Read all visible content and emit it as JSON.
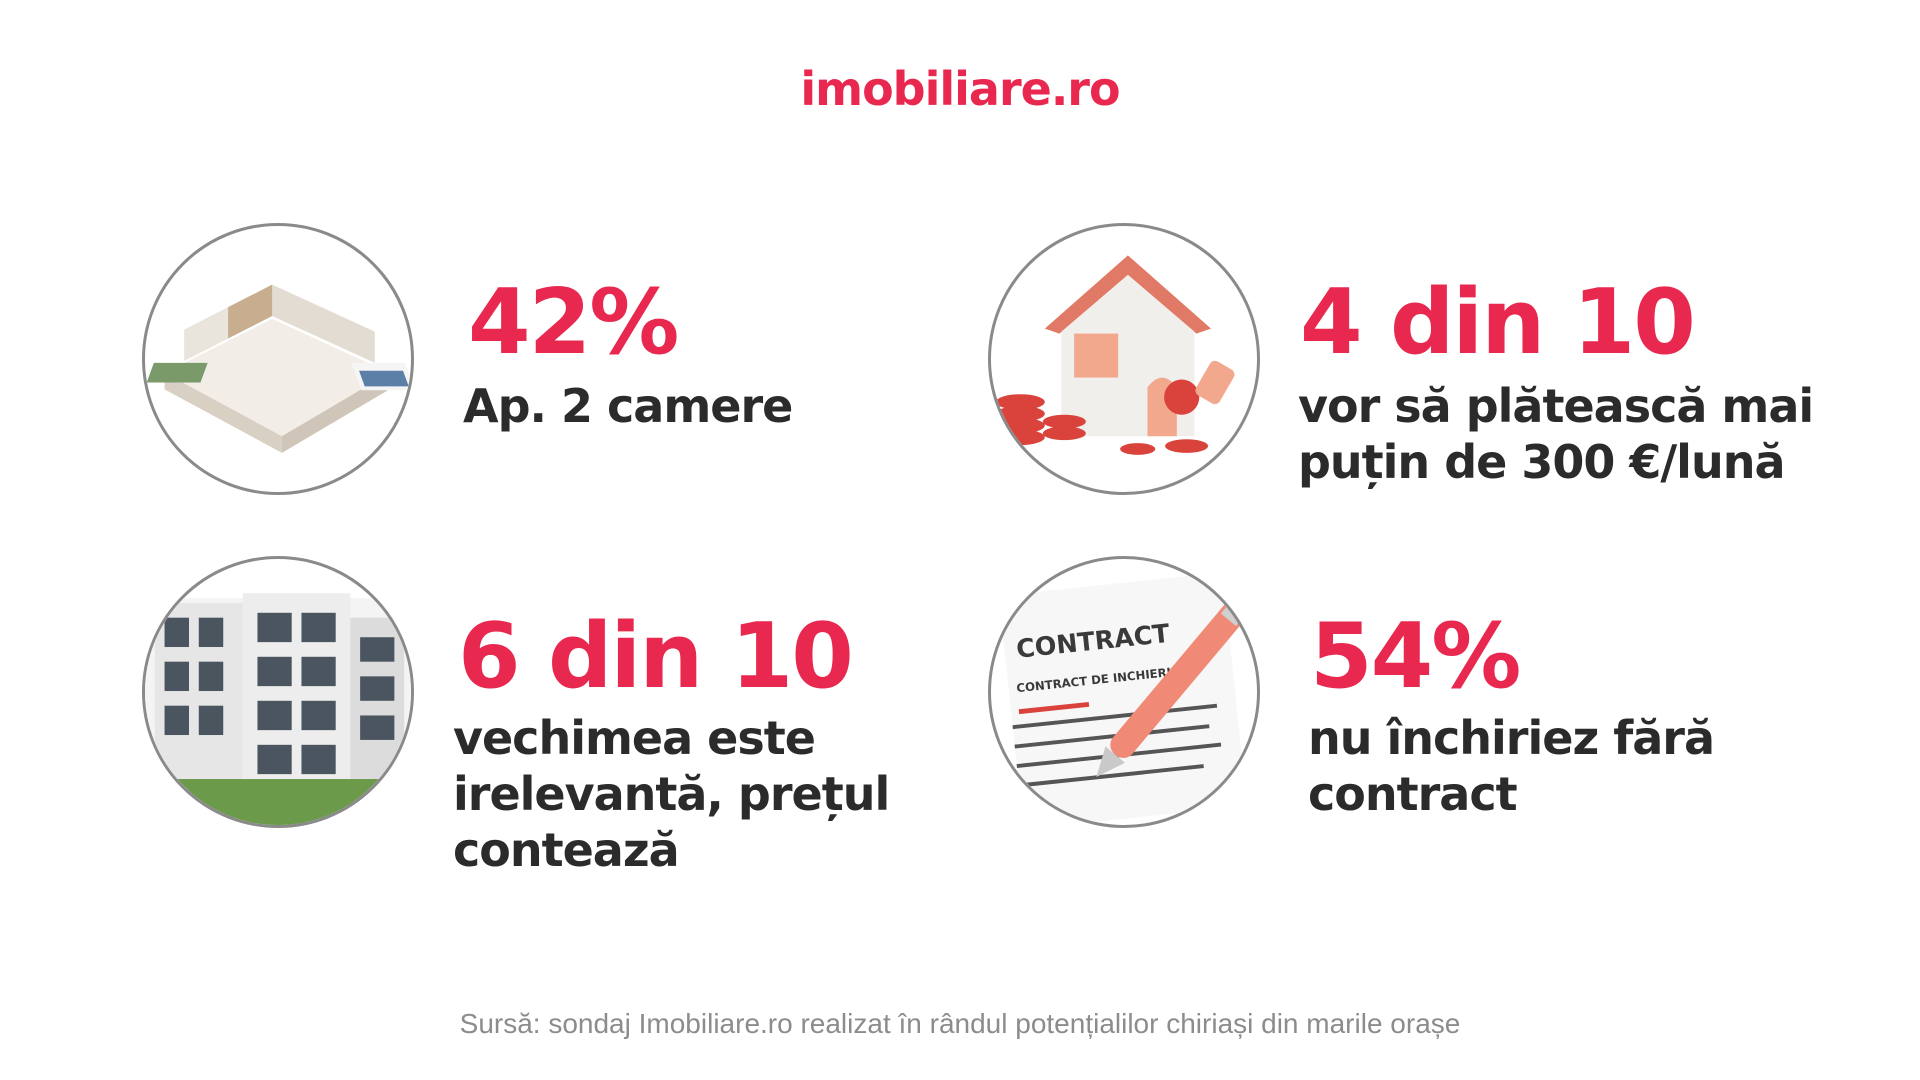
{
  "brand": {
    "logo_text": "imobiliare.ro",
    "accent_color": "#e8284f",
    "text_color": "#2b2b2b"
  },
  "stats": [
    {
      "value": "42%",
      "caption": "Ap. 2 camere",
      "icon": "apartment-floorplan-icon"
    },
    {
      "value": "4 din 10",
      "caption": "vor să plătească mai puțin de 300 €/lună",
      "icon": "house-with-coins-icon"
    },
    {
      "value": "6 din 10",
      "caption": "vechimea este irelevantă, prețul contează",
      "icon": "apartment-building-icon"
    },
    {
      "value": "54%",
      "caption": "nu închiriez fără contract",
      "icon": "contract-pen-icon"
    }
  ],
  "source": "Sursă: sondaj Imobiliare.ro realizat în rândul potențialilor chiriași din marile orașe"
}
